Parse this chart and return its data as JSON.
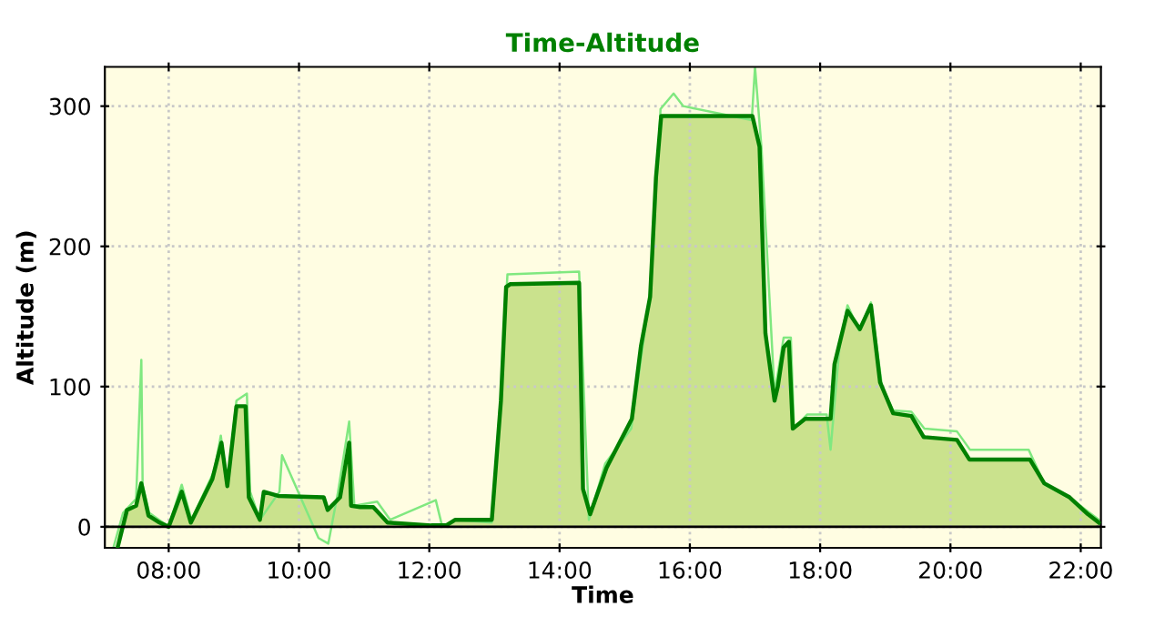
{
  "chart_data": {
    "type": "area",
    "title": "Time-Altitude",
    "xlabel": "Time",
    "ylabel": "Altitude (m)",
    "xlim": [
      7.02,
      22.31
    ],
    "ylim": [
      -15,
      328
    ],
    "xticks": [
      {
        "value": 8,
        "label": "08:00"
      },
      {
        "value": 10,
        "label": "10:00"
      },
      {
        "value": 12,
        "label": "12:00"
      },
      {
        "value": 14,
        "label": "14:00"
      },
      {
        "value": 16,
        "label": "16:00"
      },
      {
        "value": 18,
        "label": "18:00"
      },
      {
        "value": 20,
        "label": "20:00"
      },
      {
        "value": 22,
        "label": "22:00"
      }
    ],
    "yticks": [
      0,
      100,
      200,
      300
    ],
    "grid": true,
    "line_style": "solid",
    "series": [
      {
        "color": "#008000",
        "x": [
          7.22,
          7.36,
          7.5,
          7.58,
          7.69,
          7.86,
          8.0,
          8.2,
          8.34,
          8.67,
          8.81,
          8.9,
          9.04,
          9.18,
          9.23,
          9.4,
          9.46,
          9.68,
          10.38,
          10.44,
          10.63,
          10.77,
          10.8,
          10.94,
          11.14,
          11.36,
          12.03,
          12.26,
          12.4,
          12.96,
          13.1,
          13.18,
          13.24,
          14.3,
          14.36,
          14.47,
          14.72,
          14.92,
          15.11,
          15.25,
          15.39,
          15.48,
          15.56,
          15.95,
          16.96,
          17.07,
          17.16,
          17.3,
          17.35,
          17.44,
          17.52,
          17.58,
          17.77,
          18.16,
          18.22,
          18.42,
          18.61,
          18.78,
          18.92,
          19.12,
          19.4,
          19.59,
          20.1,
          20.29,
          21.22,
          21.44,
          21.83,
          22.11,
          22.28
        ],
        "values": [
          -14,
          12,
          15,
          31,
          8,
          3,
          0,
          25,
          3,
          34,
          60,
          29,
          86,
          86,
          21,
          5,
          25,
          22,
          21,
          12,
          21,
          60,
          15,
          14,
          14,
          3,
          1,
          1,
          5,
          5,
          90,
          171,
          173,
          174,
          27,
          9,
          42,
          60,
          77,
          129,
          164,
          249,
          293,
          293,
          293,
          271,
          138,
          90,
          100,
          128,
          132,
          70,
          77,
          77,
          116,
          154,
          141,
          158,
          103,
          81,
          79,
          64,
          62,
          48,
          48,
          31,
          21,
          9,
          3
        ]
      },
      {
        "type": "line",
        "color": "#80e880",
        "x": [
          7.15,
          7.3,
          7.5,
          7.58,
          7.6,
          7.7,
          8.0,
          8.2,
          8.35,
          8.7,
          8.8,
          8.9,
          9.04,
          9.2,
          9.25,
          9.4,
          9.7,
          9.74,
          10.3,
          10.45,
          10.6,
          10.77,
          10.85,
          11.2,
          11.4,
          12.1,
          12.2,
          12.4,
          12.96,
          13.1,
          13.2,
          14.3,
          14.45,
          14.7,
          15.1,
          15.4,
          15.55,
          15.75,
          15.9,
          16.95,
          17.0,
          17.1,
          17.3,
          17.44,
          17.55,
          17.6,
          17.8,
          18.1,
          18.16,
          18.3,
          18.42,
          18.6,
          18.78,
          18.95,
          19.12,
          19.4,
          19.6,
          20.1,
          20.3,
          21.2,
          21.45,
          21.85,
          22.28
        ],
        "values": [
          -15,
          10,
          20,
          119,
          30,
          10,
          0,
          30,
          5,
          40,
          65,
          30,
          90,
          95,
          25,
          5,
          25,
          51,
          -8,
          -12,
          25,
          75,
          15,
          18,
          5,
          19,
          0,
          5,
          3,
          95,
          180,
          182,
          5,
          45,
          70,
          170,
          298,
          309,
          300,
          290,
          328,
          270,
          95,
          135,
          135,
          70,
          80,
          80,
          55,
          130,
          158,
          140,
          160,
          100,
          83,
          82,
          70,
          68,
          55,
          55,
          30,
          20,
          5
        ]
      }
    ]
  }
}
